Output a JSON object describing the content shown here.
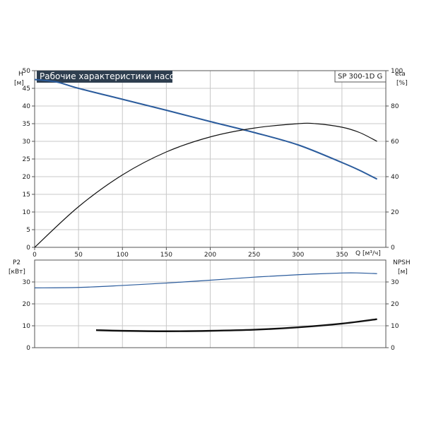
{
  "title": "Рабочие характеристики насоса",
  "model_label": "SP 300-1D G",
  "colors": {
    "title_bg": "#2e3e4f",
    "head_curve": "#2a5b9c",
    "p2_curve": "#2a5b9c",
    "eta_curve": "#111111",
    "npsh_curve": "#111111",
    "grid": "#c8c8c8",
    "frame": "#555555"
  },
  "chart_data": [
    {
      "type": "line",
      "title": "Рабочие характеристики насоса",
      "xlabel": "Q [м³/ч]",
      "xlim": [
        0,
        400
      ],
      "x_ticks": [
        "0",
        "50",
        "100",
        "150",
        "200",
        "250",
        "300",
        "350"
      ],
      "ylabel_left": "H",
      "ylabel_left_unit": "[м]",
      "ylim_left": [
        0,
        50
      ],
      "y_ticks_left": [
        "0",
        "5",
        "10",
        "15",
        "20",
        "25",
        "30",
        "35",
        "40",
        "45",
        "50"
      ],
      "ylabel_right": "eta",
      "ylabel_right_unit": "[%]",
      "ylim_right": [
        0,
        100
      ],
      "y_ticks_right": [
        "0",
        "20",
        "40",
        "60",
        "80",
        "100"
      ],
      "grid": true,
      "series": [
        {
          "axis": "left",
          "x": [
            0,
            25,
            50,
            100,
            150,
            200,
            250,
            300,
            350,
            370,
            390
          ],
          "values": [
            47.5,
            46.8,
            45.0,
            41.9,
            38.8,
            35.6,
            32.5,
            29.0,
            24.0,
            21.8,
            19.3
          ]
        },
        {
          "axis": "right",
          "x": [
            0,
            50,
            100,
            150,
            200,
            250,
            300,
            320,
            350,
            370,
            390
          ],
          "values": [
            0,
            23,
            41,
            54,
            62.5,
            67.5,
            70,
            70,
            68,
            65,
            60
          ]
        }
      ]
    },
    {
      "type": "line",
      "ylabel_left": "P2",
      "ylabel_left_unit": "[кВт]",
      "ylim_left": [
        0,
        40
      ],
      "y_ticks_left": [
        "0",
        "10",
        "20",
        "30"
      ],
      "ylabel_right": "NPSH",
      "ylabel_right_unit": "[м]",
      "ylim_right": [
        0,
        40
      ],
      "y_ticks_right": [
        "0",
        "10",
        "20",
        "30"
      ],
      "xlim": [
        0,
        400
      ],
      "grid": true,
      "series": [
        {
          "axis": "left",
          "x": [
            0,
            50,
            100,
            150,
            200,
            250,
            300,
            350,
            370,
            390
          ],
          "values": [
            27.3,
            27.5,
            28.4,
            29.5,
            30.8,
            32.2,
            33.3,
            34.1,
            34.1,
            33.8
          ]
        },
        {
          "axis": "right",
          "x": [
            70,
            100,
            150,
            200,
            250,
            300,
            350,
            390
          ],
          "values": [
            8.0,
            7.7,
            7.5,
            7.7,
            8.2,
            9.3,
            11.0,
            13.0
          ]
        }
      ]
    }
  ]
}
